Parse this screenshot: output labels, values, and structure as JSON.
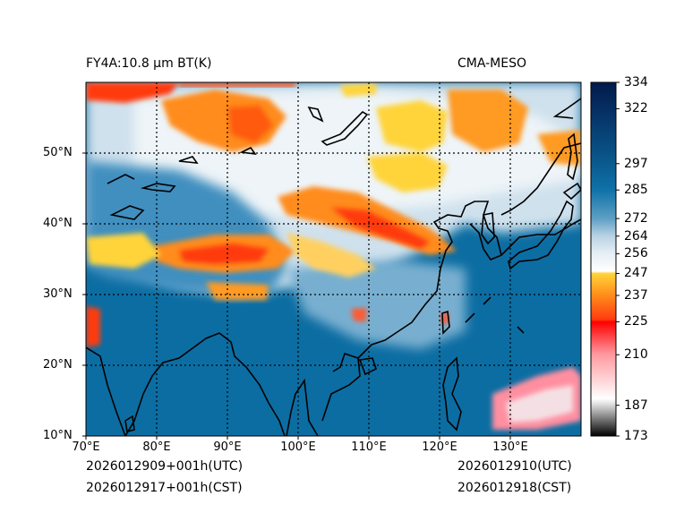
{
  "header": {
    "title_left": "FY4A:10.8 µm BT(K)",
    "title_right": "CMA-MESO"
  },
  "footer": {
    "init_utc": "2026012909+001h(UTC)",
    "init_cst": "2026012917+001h(CST)",
    "valid_utc": "2026012910(UTC)",
    "valid_cst": "2026012918(CST)"
  },
  "map": {
    "lon_min": 70,
    "lon_max": 140,
    "lat_min": 10,
    "lat_max": 60,
    "lon_ticks": [
      "70°E",
      "80°E",
      "90°E",
      "100°E",
      "110°E",
      "120°E",
      "130°E"
    ],
    "lat_ticks": [
      "10°N",
      "20°N",
      "30°N",
      "40°N",
      "50°N"
    ]
  },
  "colorbar": {
    "labels": [
      "334",
      "322",
      "297",
      "285",
      "272",
      "264",
      "256",
      "247",
      "237",
      "225",
      "210",
      "187",
      "173"
    ],
    "stops": [
      {
        "v": 173,
        "c": "#000000"
      },
      {
        "v": 187,
        "c": "#d8d8d8"
      },
      {
        "v": 190,
        "c": "#ffffff"
      },
      {
        "v": 210,
        "c": "#ff9aa0"
      },
      {
        "v": 225,
        "c": "#ff0000"
      },
      {
        "v": 226,
        "c": "#ff3a10"
      },
      {
        "v": 237,
        "c": "#ff8c1a"
      },
      {
        "v": 247,
        "c": "#ffd43a"
      },
      {
        "v": 248,
        "c": "#ffffff"
      },
      {
        "v": 256,
        "c": "#e6eef5"
      },
      {
        "v": 264,
        "c": "#b9d3e4"
      },
      {
        "v": 272,
        "c": "#5e9fc4"
      },
      {
        "v": 285,
        "c": "#0f72a8"
      },
      {
        "v": 297,
        "c": "#0a5a8e"
      },
      {
        "v": 322,
        "c": "#062e62"
      },
      {
        "v": 334,
        "c": "#021a4a"
      }
    ],
    "colors": {
      "ocean": "#0c6da2",
      "cold_cloud": "#ff7f14",
      "very_cold": "#ff2a00",
      "cirrus": "#ffd23c",
      "low_cloud": "#e9f1f6",
      "land_warm": "#2e86b9"
    }
  }
}
